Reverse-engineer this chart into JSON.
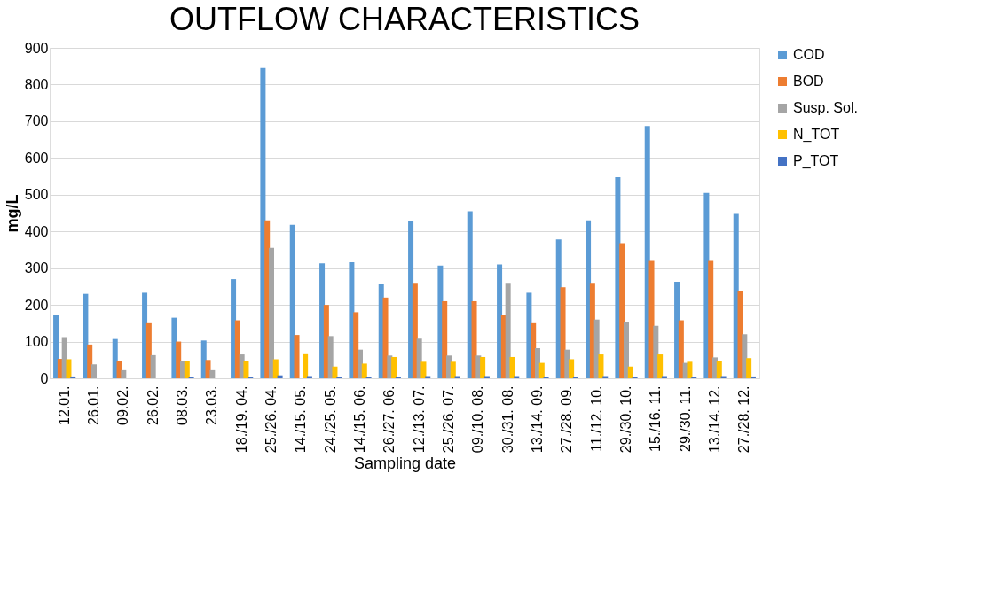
{
  "chart_data": {
    "type": "bar",
    "title": "OUTFLOW CHARACTERISTICS",
    "xlabel": "Sampling date",
    "ylabel": "mg/L",
    "categories": [
      "12.01.",
      "26.01.",
      "09.02.",
      "26.02.",
      "08.03.",
      "23.03.",
      "18./19. 04.",
      "25./26. 04.",
      "14./15. 05.",
      "24./25. 05.",
      "14./15. 06.",
      "26./27. 06.",
      "12./13. 07.",
      "25./26. 07.",
      "09./10. 08.",
      "30./31. 08.",
      "13./14. 09.",
      "27./28. 09.",
      "11./12. 10.",
      "29./30. 10.",
      "15./16. 11.",
      "29./30. 11.",
      "13./14. 12.",
      "27./28. 12."
    ],
    "series": [
      {
        "name": "COD",
        "color": "#5b9bd5",
        "values": [
          172,
          230,
          107,
          233,
          165,
          103,
          270,
          845,
          418,
          313,
          316,
          258,
          427,
          307,
          455,
          310,
          233,
          378,
          430,
          548,
          687,
          263,
          505,
          450
        ]
      },
      {
        "name": "BOD",
        "color": "#ed7d31",
        "values": [
          53,
          92,
          48,
          150,
          100,
          50,
          158,
          430,
          118,
          200,
          180,
          220,
          260,
          210,
          210,
          172,
          150,
          248,
          260,
          368,
          320,
          158,
          320,
          238
        ]
      },
      {
        "name": "Susp. Sol.",
        "color": "#a5a5a5",
        "values": [
          112,
          38,
          22,
          63,
          48,
          22,
          65,
          355,
          null,
          115,
          78,
          62,
          108,
          62,
          62,
          260,
          82,
          78,
          160,
          152,
          143,
          42,
          57,
          120
        ]
      },
      {
        "name": "N_TOT",
        "color": "#ffc000",
        "values": [
          52,
          null,
          null,
          null,
          48,
          null,
          48,
          52,
          68,
          32,
          40,
          58,
          45,
          45,
          58,
          58,
          42,
          52,
          65,
          32,
          65,
          45,
          48,
          55
        ]
      },
      {
        "name": "P_TOT",
        "color": "#4472c4",
        "values": [
          5,
          null,
          null,
          null,
          3,
          null,
          4,
          8,
          6,
          3,
          3,
          3,
          6,
          6,
          6,
          6,
          3,
          4,
          6,
          3,
          6,
          3,
          6,
          5
        ]
      }
    ],
    "ylim": [
      0,
      900
    ],
    "yticks": [
      0,
      100,
      200,
      300,
      400,
      500,
      600,
      700,
      800,
      900
    ],
    "grid": "y",
    "legend": "right"
  }
}
